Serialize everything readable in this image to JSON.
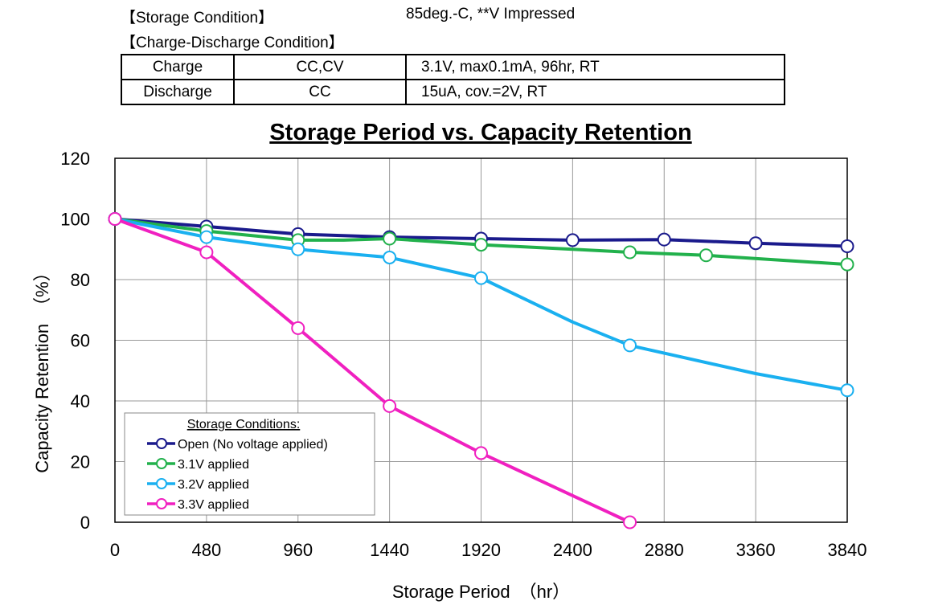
{
  "header": {
    "storage_condition_label": "【Storage Condition】",
    "storage_condition_value": "85deg.-C, **V Impressed",
    "charge_discharge_label": "【Charge-Discharge Condition】"
  },
  "conditions_table": {
    "rows": [
      {
        "type": "Charge",
        "mode": "CC,CV",
        "detail": "3.1V,  max0.1mA,  96hr,   RT"
      },
      {
        "type": "Discharge",
        "mode": "CC",
        "detail": "15uA,  cov.=2V,   RT"
      }
    ]
  },
  "chart_data": {
    "type": "line",
    "title": "Storage Period  vs.  Capacity Retention",
    "xlabel": "Storage Period　（hr）",
    "ylabel": "Capacity Retention　（%）",
    "xlim": [
      0,
      3840
    ],
    "ylim": [
      0,
      120
    ],
    "x_ticks": [
      0,
      480,
      960,
      1440,
      1920,
      2400,
      2880,
      3360,
      3840
    ],
    "y_ticks": [
      0,
      20,
      40,
      60,
      80,
      100,
      120
    ],
    "grid": true,
    "legend": {
      "title": "Storage Conditions:",
      "placement": "bottom-left"
    },
    "series": [
      {
        "name": "Open (No voltage applied)",
        "color": "#1a1a8c",
        "line": [
          [
            0,
            100
          ],
          [
            480,
            97.5
          ],
          [
            960,
            95
          ],
          [
            1440,
            94
          ],
          [
            1920,
            93.5
          ],
          [
            2400,
            93
          ],
          [
            2880,
            93.2
          ],
          [
            3360,
            92
          ],
          [
            3840,
            91
          ]
        ],
        "markers": [
          [
            0,
            100
          ],
          [
            480,
            97.5
          ],
          [
            960,
            95
          ],
          [
            1440,
            94
          ],
          [
            1920,
            93.5
          ],
          [
            2400,
            93
          ],
          [
            2880,
            93.2
          ],
          [
            3360,
            92
          ],
          [
            3840,
            91
          ]
        ]
      },
      {
        "name": "3.1V applied",
        "color": "#22b14c",
        "line": [
          [
            0,
            100
          ],
          [
            480,
            96
          ],
          [
            960,
            93
          ],
          [
            1200,
            93
          ],
          [
            1440,
            93.5
          ],
          [
            1920,
            91.5
          ],
          [
            2400,
            90
          ],
          [
            2700,
            89
          ],
          [
            3100,
            88
          ],
          [
            3840,
            85
          ]
        ],
        "markers": [
          [
            0,
            100
          ],
          [
            480,
            96
          ],
          [
            960,
            93
          ],
          [
            1440,
            93.5
          ],
          [
            1920,
            91.5
          ],
          [
            2700,
            89
          ],
          [
            3100,
            88
          ],
          [
            3840,
            85
          ]
        ]
      },
      {
        "name": "3.2V applied",
        "color": "#1ab0f0",
        "line": [
          [
            0,
            100
          ],
          [
            480,
            94
          ],
          [
            960,
            90
          ],
          [
            1440,
            87.3
          ],
          [
            1920,
            80.5
          ],
          [
            2400,
            66
          ],
          [
            2700,
            58.3
          ],
          [
            3360,
            49
          ],
          [
            3840,
            43.5
          ]
        ],
        "markers": [
          [
            0,
            100
          ],
          [
            480,
            94
          ],
          [
            960,
            90
          ],
          [
            1440,
            87.3
          ],
          [
            1920,
            80.5
          ],
          [
            2700,
            58.3
          ],
          [
            3840,
            43.5
          ]
        ]
      },
      {
        "name": "3.3V applied",
        "color": "#f020c0",
        "line": [
          [
            0,
            100
          ],
          [
            480,
            89
          ],
          [
            960,
            64
          ],
          [
            1440,
            38.3
          ],
          [
            1920,
            22.8
          ],
          [
            2700,
            0
          ]
        ],
        "markers": [
          [
            0,
            100
          ],
          [
            480,
            89
          ],
          [
            960,
            64
          ],
          [
            1440,
            38.3
          ],
          [
            1920,
            22.8
          ],
          [
            2700,
            0
          ]
        ]
      }
    ]
  }
}
